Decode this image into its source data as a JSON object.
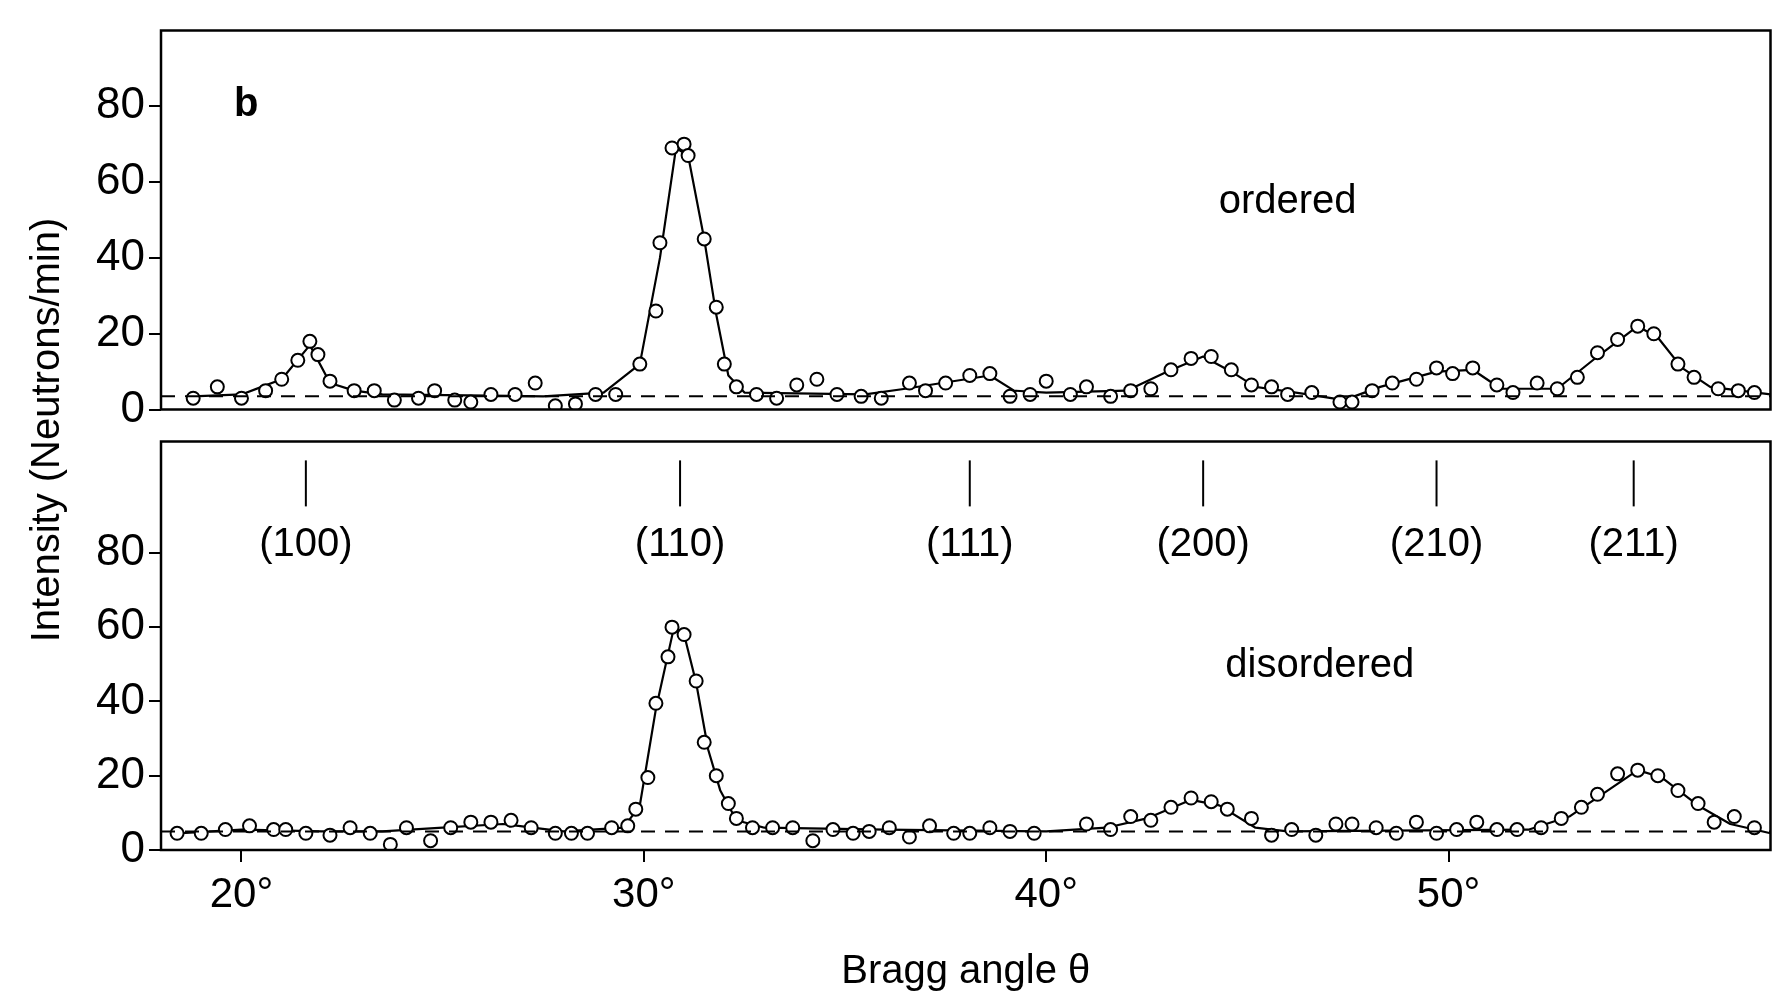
{
  "chart_data": [
    {
      "type": "scatter",
      "ylabel": "Intensity (Neutrons/min)",
      "annotations": [
        "b",
        "ordered"
      ],
      "xlim": [
        18,
        58
      ],
      "ylim": [
        0,
        100
      ],
      "yticks": [
        0,
        20,
        40,
        60,
        80
      ],
      "tick_labels": "y",
      "legend": false,
      "ref_lines": [
        {
          "axis": "y",
          "value": 3.5,
          "line_style": "dashed",
          "color": "#000000"
        }
      ],
      "series": [
        {
          "type": "line",
          "marker": "none",
          "color": "#000000",
          "x": [
            18.8,
            20,
            21,
            21.7,
            22.2,
            22.8,
            23.5,
            27.5,
            29,
            29.9,
            30.4,
            30.8,
            31.1,
            31.5,
            31.8,
            32.1,
            32.5,
            35.5,
            36.5,
            38,
            38.6,
            39.2,
            40,
            42,
            43,
            43.9,
            44.6,
            45.2,
            46.5,
            47.4,
            48.3,
            49.7,
            50.6,
            51.3,
            52.7,
            53.7,
            54.7,
            55.2,
            55.8,
            56.5,
            58
          ],
          "values": [
            3.5,
            4,
            8,
            17,
            7,
            5,
            4,
            3.5,
            4.5,
            12,
            40,
            69,
            67,
            45,
            25,
            9,
            4.5,
            4,
            5.5,
            8,
            9,
            5,
            4.5,
            5,
            10,
            14,
            10,
            6,
            4,
            2.5,
            6,
            10,
            10.5,
            5.5,
            5.5,
            14,
            22,
            19,
            11,
            6,
            4
          ]
        },
        {
          "marker": "circle",
          "color": "#000000",
          "x": [
            18.8,
            19.4,
            20.0,
            20.6,
            21.0,
            21.4,
            21.7,
            21.9,
            22.2,
            22.8,
            23.3,
            23.8,
            24.4,
            24.8,
            25.3,
            25.7,
            26.2,
            26.8,
            27.3,
            27.8,
            28.3,
            28.8,
            29.3,
            29.9,
            30.3,
            30.4,
            30.7,
            31.0,
            31.1,
            31.5,
            31.8,
            32.0,
            32.3,
            32.8,
            33.3,
            33.8,
            34.3,
            34.8,
            35.4,
            35.9,
            36.6,
            37.0,
            37.5,
            38.1,
            38.6,
            39.1,
            39.6,
            40.0,
            40.6,
            41.0,
            41.6,
            42.1,
            42.6,
            43.1,
            43.6,
            44.1,
            44.6,
            45.1,
            45.6,
            46.0,
            46.6,
            47.3,
            47.6,
            48.1,
            48.6,
            49.2,
            49.7,
            50.1,
            50.6,
            51.2,
            51.6,
            52.2,
            52.7,
            53.2,
            53.7,
            54.2,
            54.7,
            55.1,
            55.7,
            56.1,
            56.7,
            57.2,
            57.6
          ],
          "values": [
            3,
            6,
            3,
            5,
            8,
            13,
            18,
            14.5,
            7.5,
            5,
            5,
            2.5,
            3,
            5,
            2.5,
            2,
            4,
            4,
            7,
            1,
            1.5,
            4,
            4,
            12,
            26,
            44,
            69,
            70,
            67,
            45,
            27,
            12,
            6,
            4,
            3,
            6.5,
            8,
            4,
            3.5,
            3,
            7,
            5,
            7,
            9,
            9.5,
            3.5,
            4,
            7.5,
            4,
            6,
            3.5,
            5,
            5.5,
            10.5,
            13.5,
            14,
            10.5,
            6.5,
            6,
            4,
            4.5,
            2,
            2,
            5,
            7,
            8,
            11,
            9.5,
            11,
            6.5,
            4.5,
            7,
            5.5,
            8.5,
            15,
            18.5,
            22,
            20,
            12,
            8.5,
            5.5,
            5,
            4.5
          ]
        }
      ]
    },
    {
      "type": "scatter",
      "xlabel": "Bragg angle θ",
      "annotations": [
        "(100)",
        "(110)",
        "(111)",
        "(200)",
        "(210)",
        "(211)",
        "disordered"
      ],
      "xlim": [
        18,
        58
      ],
      "xticks": [
        {
          "value": 20,
          "label": "20°"
        },
        {
          "value": 30,
          "label": "30°"
        },
        {
          "value": 40,
          "label": "40°"
        },
        {
          "value": 50,
          "label": "50°"
        }
      ],
      "ylim": [
        0,
        110
      ],
      "yticks": [
        0,
        20,
        40,
        60,
        80
      ],
      "legend": false,
      "ref_lines": [
        {
          "axis": "y",
          "value": 5,
          "line_style": "dashed",
          "color": "#000000"
        }
      ],
      "series": [
        {
          "type": "line",
          "marker": "none",
          "color": "#000000",
          "x": [
            18.4,
            20,
            22,
            23.5,
            25,
            26.5,
            28,
            29.5,
            29.9,
            30.3,
            30.75,
            31.0,
            31.3,
            31.6,
            31.9,
            32.3,
            33,
            36,
            40,
            41.5,
            42.5,
            43.6,
            44.3,
            45.2,
            46,
            52,
            53,
            54.7,
            55.3,
            56.2,
            57,
            58
          ],
          "values": [
            4.5,
            5.5,
            5,
            5,
            6,
            7,
            5,
            6,
            12,
            38,
            60,
            58,
            45,
            27,
            16,
            8,
            6,
            5.5,
            5,
            6,
            8.5,
            13.5,
            12,
            6,
            5,
            5.5,
            9,
            21.5,
            19.5,
            12,
            7,
            4.5
          ]
        },
        {
          "marker": "circle",
          "color": "#000000",
          "x": [
            18.4,
            19.0,
            19.6,
            20.2,
            20.8,
            21.1,
            21.6,
            22.2,
            22.7,
            23.2,
            23.7,
            24.1,
            24.7,
            25.2,
            25.7,
            26.2,
            26.7,
            27.2,
            27.8,
            28.2,
            28.6,
            29.2,
            29.6,
            29.8,
            30.1,
            30.3,
            30.6,
            30.7,
            31.0,
            31.3,
            31.5,
            31.8,
            32.1,
            32.3,
            32.7,
            33.2,
            33.7,
            34.2,
            34.7,
            35.2,
            35.6,
            36.1,
            36.6,
            37.1,
            37.7,
            38.1,
            38.6,
            39.1,
            39.7,
            41.0,
            41.6,
            42.1,
            42.6,
            43.1,
            43.6,
            44.1,
            44.5,
            45.1,
            45.6,
            46.1,
            46.7,
            47.2,
            47.6,
            48.2,
            48.7,
            49.2,
            49.7,
            50.2,
            50.7,
            51.2,
            51.7,
            52.3,
            52.8,
            53.3,
            53.7,
            54.2,
            54.7,
            55.2,
            55.7,
            56.2,
            56.6,
            57.1,
            57.6
          ],
          "values": [
            4.5,
            4.5,
            5.5,
            6.5,
            5.5,
            5.5,
            4.5,
            4,
            6,
            4.5,
            1.5,
            6,
            2.5,
            6,
            7.5,
            7.5,
            8,
            6,
            4.5,
            4.5,
            4.5,
            6,
            6.5,
            11,
            19.5,
            39.5,
            52,
            60,
            58,
            45.5,
            29,
            20,
            12.5,
            8.5,
            6,
            6,
            6,
            2.5,
            5.5,
            4.5,
            5,
            6,
            3.5,
            6.5,
            4.5,
            4.5,
            6,
            5,
            4.5,
            7,
            5.5,
            9,
            8,
            11.5,
            14,
            13,
            11,
            8.5,
            4,
            5.5,
            4,
            7,
            7,
            6,
            4.5,
            7.5,
            4.5,
            5.5,
            7.5,
            5.5,
            5.5,
            6,
            8.5,
            11.5,
            15,
            20.5,
            21.5,
            20,
            16,
            12.5,
            7.5,
            9,
            6
          ]
        }
      ]
    }
  ]
}
